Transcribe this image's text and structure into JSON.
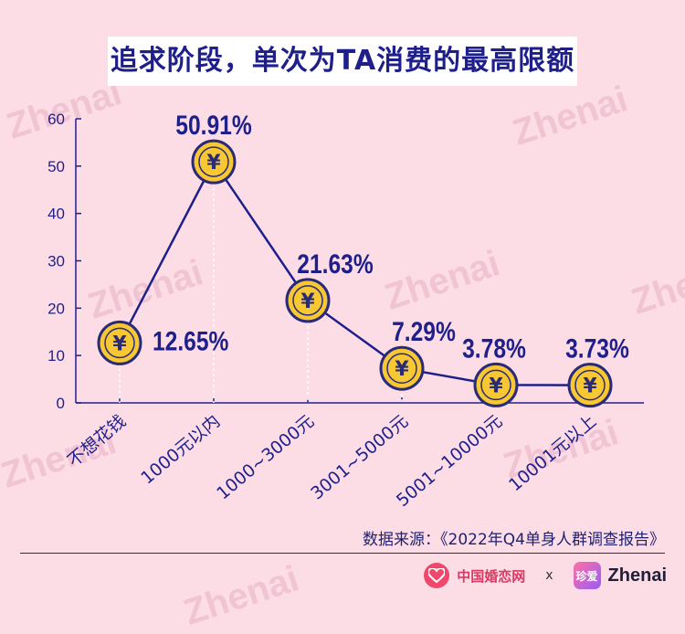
{
  "title": "追求阶段，单次为TA消费的最高限额",
  "source": "数据来源：《2022年Q4单身人群调查报告》",
  "footer": {
    "brand1": "中国婚恋网",
    "separator": "x",
    "logo2_text": "珍爱",
    "brand2": "Zhenai"
  },
  "watermark_text": "Zhenai",
  "colors": {
    "background": "#fcdde6",
    "line": "#1f1f8c",
    "coin_fill": "#f7c832",
    "coin_border": "#2a2a7a",
    "title_text": "#1f1f8c"
  },
  "chart_data": {
    "type": "line",
    "title": "追求阶段，单次为TA消费的最高限额",
    "categories": [
      "不想花钱",
      "1000元以内",
      "1000~3000元",
      "3001~5000元",
      "5001~10000元",
      "10001元以上"
    ],
    "values": [
      12.65,
      50.91,
      21.63,
      7.29,
      3.78,
      3.73
    ],
    "data_labels": [
      "12.65%",
      "50.91%",
      "21.63%",
      "7.29%",
      "3.78%",
      "3.73%"
    ],
    "ylim": [
      0,
      60
    ],
    "yticks": [
      0,
      10,
      20,
      30,
      40,
      50,
      60
    ],
    "marker_symbol": "¥",
    "grid": false
  }
}
